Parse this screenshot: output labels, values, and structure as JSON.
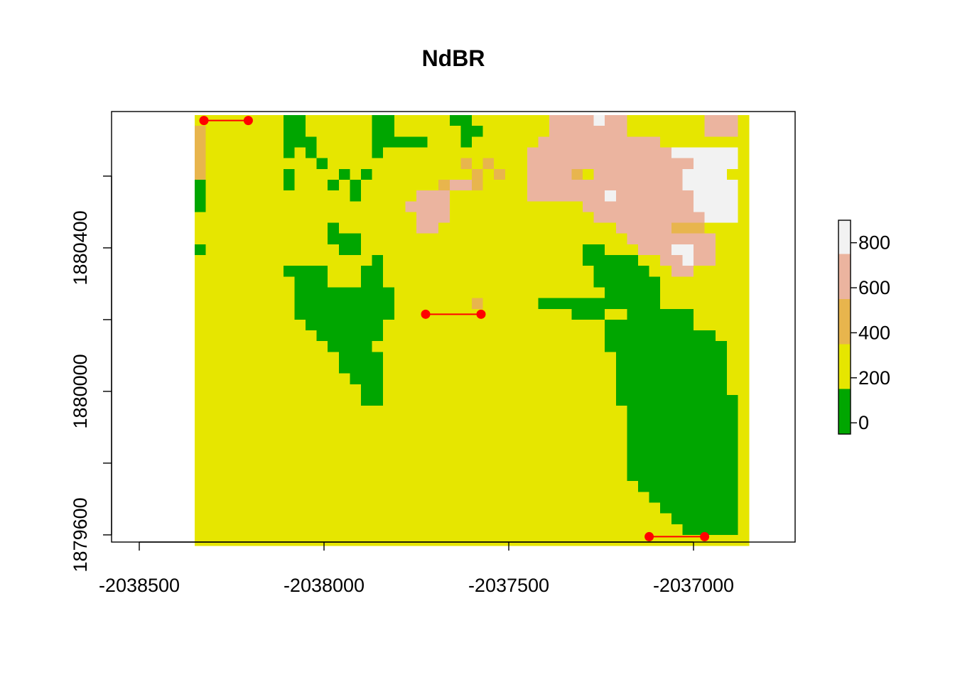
{
  "chart_data": {
    "type": "heatmap",
    "title": "NdBR",
    "xlim": [
      -2038575,
      -2036725
    ],
    "ylim": [
      1879580,
      1880780
    ],
    "raster_extent": {
      "xmin": -2038350,
      "xmax": -2036850,
      "ymin": 1879570,
      "ymax": 1880770
    },
    "raster_cols": 50,
    "raster_rows": 40,
    "x_ticks": [
      -2038500,
      -2038000,
      -2037500,
      -2037000
    ],
    "x_tick_labels": [
      "-2038500",
      "-2038000",
      "-2037500",
      "-2037000"
    ],
    "y_ticks": [
      1879600,
      1879800,
      1880000,
      1880200,
      1880400,
      1880600
    ],
    "y_tick_labels": [
      "1879600",
      "",
      "1880000",
      "",
      "1880400",
      ""
    ],
    "legend": {
      "placement": "right",
      "breaks": [
        -50,
        150,
        350,
        550,
        750,
        900
      ],
      "tick_values": [
        0,
        200,
        400,
        600,
        800
      ],
      "tick_labels": [
        "0",
        "200",
        "400",
        "600",
        "800"
      ],
      "colors": [
        "#00A600",
        "#E6E600",
        "#E8B54D",
        "#EBB49F",
        "#F2F2F2"
      ]
    },
    "grid": false,
    "classes": "0 = <150, 1 = 150-350, 2 = 350-550, 3 = 550-750, 4 = >750",
    "raster": [
      "11111111001111110011111001111111333343311111113331",
      "21111111001111110011111100111111333333311111113331",
      "21111111000111110000011101111113333333333311111111",
      "21111111010111110111111111111133333333333334444441",
      "21111111111011111111111121211133333333333333344441",
      "21111111011110101111111112121133332133333333444411",
      "01111111011101011111112332111133333333333333444441",
      "01111111111111011111333111111133333334333333344441",
      "01111111111111111113333111111111111333333333344441",
      "11111111111111111111333111111111111133333333334441",
      "11111111111101111111331111111111111111333332221111",
      "11111111111100011111111111111111111111133333333111",
      "01111111111110011111111111111111111001113334433111",
      "11111111111111110111111111111111111000001133433111",
      "11111111000011100111111111111111111100000113311111",
      "11111111100011100111111111111111111100000011111111",
      "11111111100000000011111111111111111110000011111111",
      "11111111100000000011111112111110000000000011111111",
      "11111111100000000011111111111111110001100000011111",
      "11111111110000000111111111111111111110000000011111",
      "11111111111000000111111111111111111110000000000111",
      "11111111111100001111111111111111111110000000000011",
      "11111111111110000111111111111111111111000000000011",
      "11111111111110000111111111111111111111000000000011",
      "11111111111111000111111111111111111111000000000011",
      "11111111111111100111111111111111111111000000000011",
      "11111111111111100111111111111111111111000000000001",
      "11111111111111111111111111111111111111100000000001",
      "11111111111111111111111111111111111111100000000001",
      "11111111111111111111111111111111111111100000000001",
      "11111111111111111111111111111111111111100000000001",
      "11111111111111111111111111111111111111100000000001",
      "11111111111111111111111111111111111111100000000001",
      "11111111111111111111111111111111111111100000000001",
      "11111111111111111111111111111111111111110000000001",
      "11111111111111111111111111111111111111111000000001",
      "11111111111111111111111111111111111111111100000001",
      "11111111111111111111111111111111111111111110000001",
      "11111111111111111111111111111111111111111111000001",
      "11111111111111111111111111111111111111111111111111"
    ],
    "segments": [
      {
        "x1": -2038325,
        "y1": 1880755,
        "x2": -2038205,
        "y2": 1880755
      },
      {
        "x1": -2037725,
        "y1": 1880215,
        "x2": -2037575,
        "y2": 1880215
      },
      {
        "x1": -2037120,
        "y1": 1879595,
        "x2": -2036970,
        "y2": 1879595
      }
    ],
    "segment_color": "#FF0000"
  }
}
